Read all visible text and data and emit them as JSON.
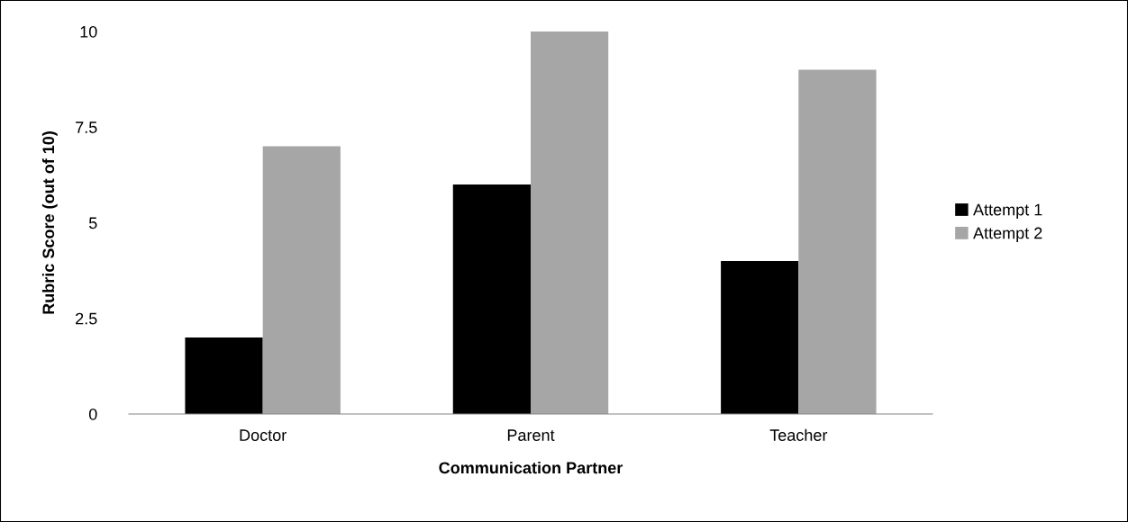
{
  "chart_data": {
    "type": "bar",
    "xlabel": "Communication Partner",
    "ylabel": "Rubric Score (out of 10)",
    "categories": [
      "Doctor",
      "Parent",
      "Teacher"
    ],
    "series": [
      {
        "name": "Attempt 1",
        "color": "#000000",
        "values": [
          2,
          6,
          4
        ]
      },
      {
        "name": "Attempt 2",
        "color": "#a6a6a6",
        "values": [
          7,
          10,
          9
        ]
      }
    ],
    "ylim": [
      0,
      10
    ],
    "yticks": [
      0,
      2.5,
      5,
      7.5,
      10
    ],
    "grid": false,
    "legend": "right"
  }
}
